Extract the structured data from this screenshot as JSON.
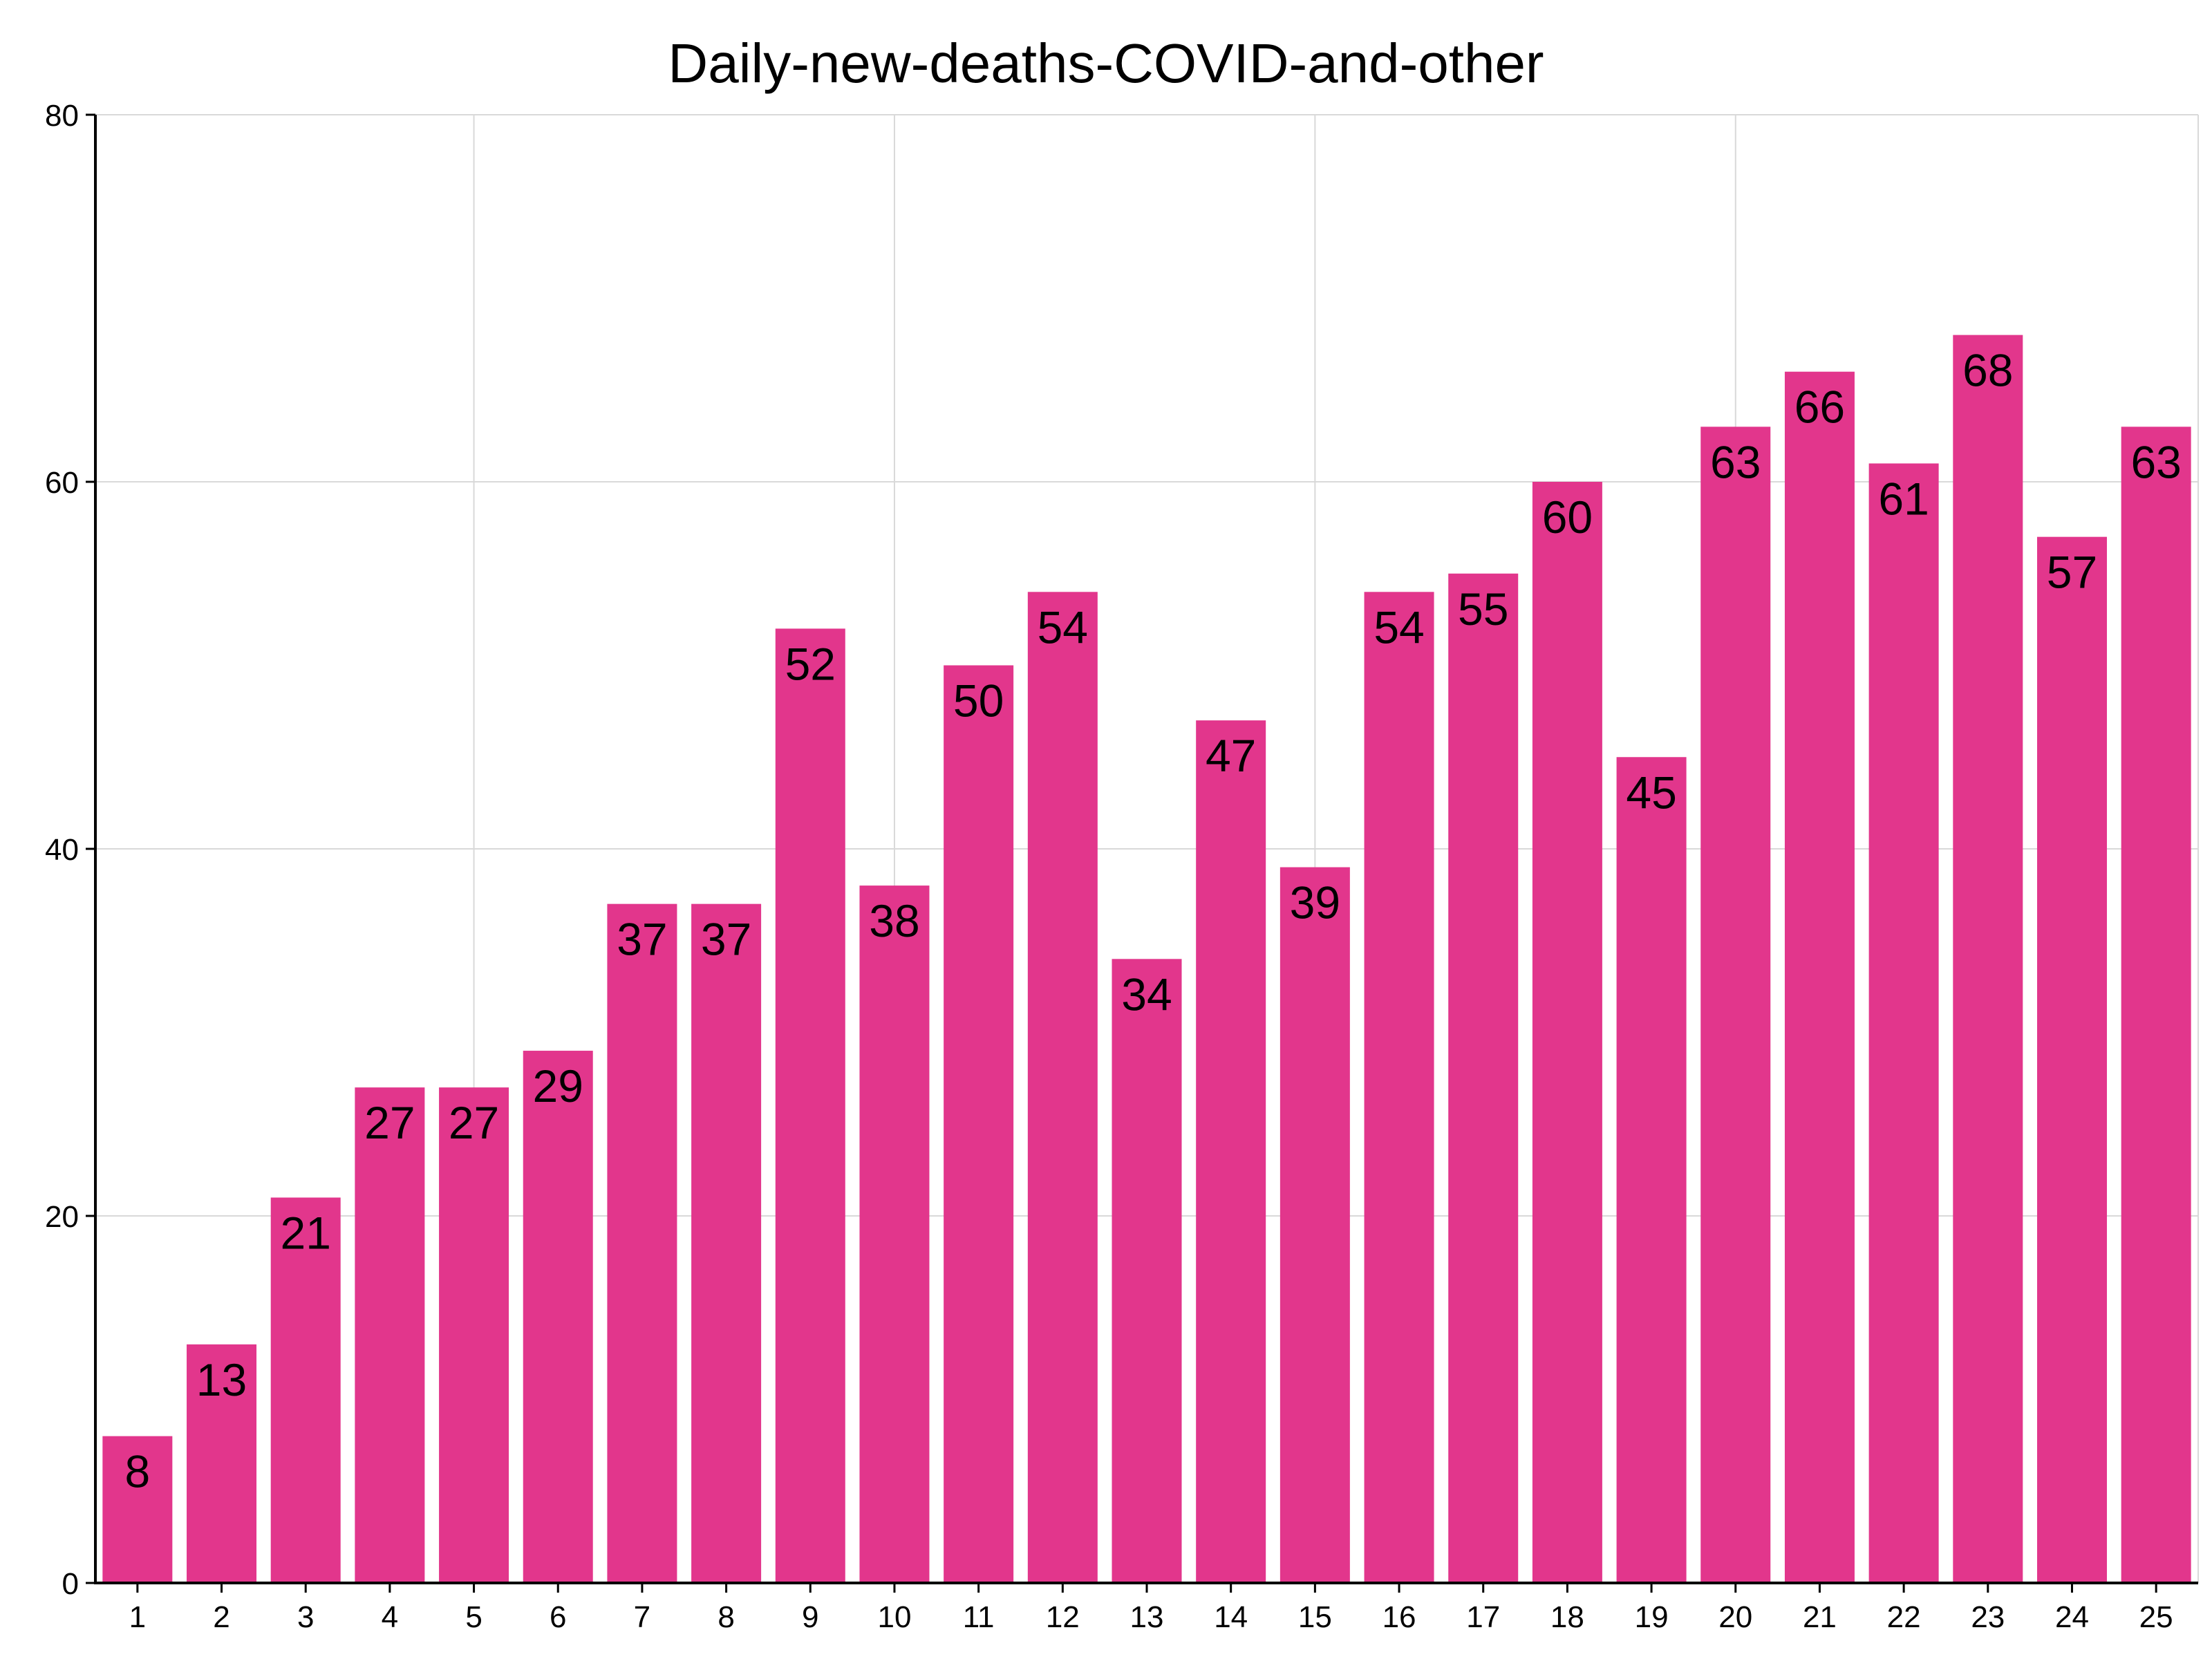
{
  "chart_data": {
    "type": "bar",
    "title": "Daily-new-deaths-COVID-and-other",
    "xlabel": "",
    "ylabel": "",
    "categories": [
      "1",
      "2",
      "3",
      "4",
      "5",
      "6",
      "7",
      "8",
      "9",
      "10",
      "11",
      "12",
      "13",
      "14",
      "15",
      "16",
      "17",
      "18",
      "19",
      "20",
      "21",
      "22",
      "23",
      "24",
      "25"
    ],
    "values": [
      8,
      13,
      21,
      27,
      27,
      29,
      37,
      37,
      52,
      38,
      50,
      54,
      34,
      47,
      39,
      54,
      55,
      60,
      45,
      63,
      66,
      61,
      68,
      57,
      63
    ],
    "ylim": [
      0,
      80
    ],
    "yticks": [
      0,
      20,
      40,
      60,
      80
    ],
    "x_gridlines_after_categories": [
      5,
      10,
      15,
      20
    ],
    "bar_color": "#e2368c",
    "grid": true,
    "legend": "none",
    "data_labels": "inside-top"
  }
}
